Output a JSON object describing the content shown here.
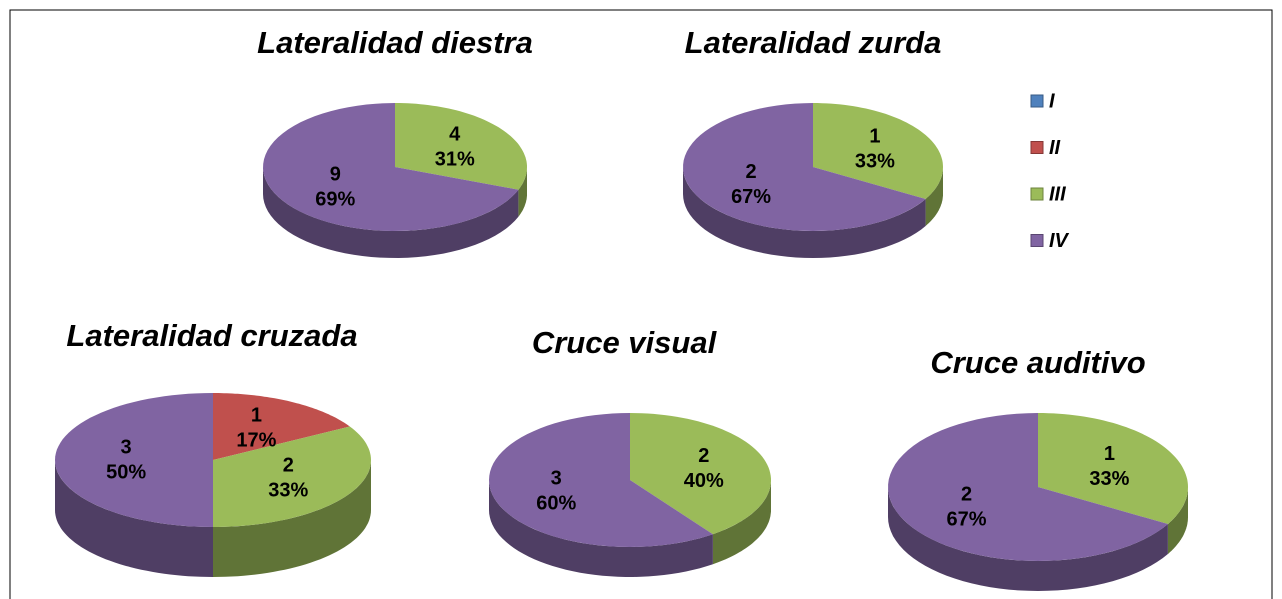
{
  "chart_data": [
    {
      "type": "pie",
      "title": "Lateralidad diestra",
      "categories": [
        "III",
        "IV"
      ],
      "values": [
        4,
        9
      ],
      "value_labels": [
        "31%",
        "69%"
      ],
      "colors": [
        "#9bbb59",
        "#8064a2"
      ]
    },
    {
      "type": "pie",
      "title": "Lateralidad zurda",
      "categories": [
        "III",
        "IV"
      ],
      "values": [
        1,
        2
      ],
      "value_labels": [
        "33%",
        "67%"
      ],
      "colors": [
        "#9bbb59",
        "#8064a2"
      ]
    },
    {
      "type": "pie",
      "title": "Lateralidad cruzada",
      "categories": [
        "II",
        "III",
        "IV"
      ],
      "values": [
        1,
        2,
        3
      ],
      "value_labels": [
        "17%",
        "33%",
        "50%"
      ],
      "colors": [
        "#c0504d",
        "#9bbb59",
        "#8064a2"
      ]
    },
    {
      "type": "pie",
      "title": "Cruce visual",
      "categories": [
        "III",
        "IV"
      ],
      "values": [
        2,
        3
      ],
      "value_labels": [
        "40%",
        "60%"
      ],
      "colors": [
        "#9bbb59",
        "#8064a2"
      ]
    },
    {
      "type": "pie",
      "title": "Cruce auditivo",
      "categories": [
        "III",
        "IV"
      ],
      "values": [
        1,
        2
      ],
      "value_labels": [
        "33%",
        "67%"
      ],
      "colors": [
        "#9bbb59",
        "#8064a2"
      ]
    }
  ],
  "legend": {
    "entries": [
      "I",
      "II",
      "III",
      "IV"
    ],
    "colors": [
      "#4f81bd",
      "#c0504d",
      "#9bbb59",
      "#8064a2"
    ]
  }
}
